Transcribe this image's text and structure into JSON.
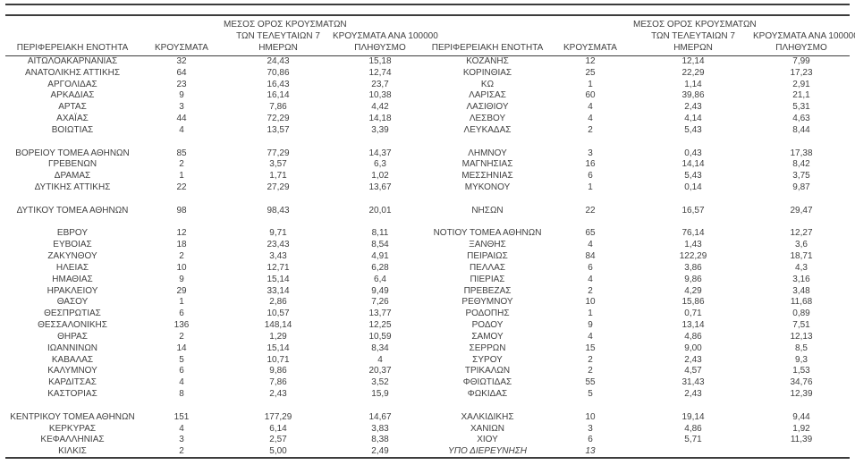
{
  "colors": {
    "text": "#3f3f3f",
    "rule": "#3c3c3c",
    "background": "#ffffff"
  },
  "columns": [
    {
      "id": "regional-unit",
      "lines": [
        "ΠΕΡΙΦΕΡΕΙΑΚΗ ΕΝΟΤΗΤΑ"
      ]
    },
    {
      "id": "cases",
      "lines": [
        "ΚΡΟΥΣΜΑΤΑ"
      ]
    },
    {
      "id": "avg-cases-7-days",
      "lines": [
        "ΜΕΣΟΣ ΟΡΟΣ ΚΡΟΥΣΜΑΤΩΝ",
        "ΤΩΝ ΤΕΛΕΥΤΑΙΩΝ 7",
        "ΗΜΕΡΩΝ"
      ]
    },
    {
      "id": "cases-per-100k",
      "lines": [
        "ΚΡΟΥΣΜΑΤΑ ΑΝΑ 100000",
        "ΠΛΗΘΥΣΜΟ"
      ]
    }
  ],
  "left_table": {
    "groups": [
      [
        [
          "ΑΙΤΩΛΟΑΚΑΡΝΑΝΙΑΣ",
          "32",
          "24,43",
          "15,18"
        ],
        [
          "ΑΝΑΤΟΛΙΚΗΣ ΑΤΤΙΚΗΣ",
          "64",
          "70,86",
          "12,74"
        ],
        [
          "ΑΡΓΟΛΙΔΑΣ",
          "23",
          "16,43",
          "23,7"
        ],
        [
          "ΑΡΚΑΔΙΑΣ",
          "9",
          "16,14",
          "10,38"
        ],
        [
          "ΑΡΤΑΣ",
          "3",
          "7,86",
          "4,42"
        ],
        [
          "ΑΧΑΪΑΣ",
          "44",
          "72,29",
          "14,18"
        ],
        [
          "ΒΟΙΩΤΙΑΣ",
          "4",
          "13,57",
          "3,39"
        ]
      ],
      [
        [
          "ΒΟΡΕΙΟΥ ΤΟΜΕΑ ΑΘΗΝΩΝ",
          "85",
          "77,29",
          "14,37"
        ],
        [
          "ΓΡΕΒΕΝΩΝ",
          "2",
          "3,57",
          "6,3"
        ],
        [
          "ΔΡΑΜΑΣ",
          "1",
          "1,71",
          "1,02"
        ],
        [
          "ΔΥΤΙΚΗΣ ΑΤΤΙΚΗΣ",
          "22",
          "27,29",
          "13,67"
        ]
      ],
      [
        [
          "ΔΥΤΙΚΟΥ ΤΟΜΕΑ ΑΘΗΝΩΝ",
          "98",
          "98,43",
          "20,01"
        ]
      ],
      [
        [
          "ΕΒΡΟΥ",
          "12",
          "9,71",
          "8,11"
        ],
        [
          "ΕΥΒΟΙΑΣ",
          "18",
          "23,43",
          "8,54"
        ],
        [
          "ΖΑΚΥΝΘΟΥ",
          "2",
          "3,43",
          "4,91"
        ],
        [
          "ΗΛΕΙΑΣ",
          "10",
          "12,71",
          "6,28"
        ],
        [
          "ΗΜΑΘΙΑΣ",
          "9",
          "15,14",
          "6,4"
        ],
        [
          "ΗΡΑΚΛΕΙΟΥ",
          "29",
          "33,14",
          "9,49"
        ],
        [
          "ΘΑΣΟΥ",
          "1",
          "2,86",
          "7,26"
        ],
        [
          "ΘΕΣΠΡΩΤΙΑΣ",
          "6",
          "10,57",
          "13,77"
        ],
        [
          "ΘΕΣΣΑΛΟΝΙΚΗΣ",
          "136",
          "148,14",
          "12,25"
        ],
        [
          "ΘΗΡΑΣ",
          "2",
          "1,29",
          "10,59"
        ],
        [
          "ΙΩΑΝΝΙΝΩΝ",
          "14",
          "15,14",
          "8,34"
        ],
        [
          "ΚΑΒΑΛΑΣ",
          "5",
          "10,71",
          "4"
        ],
        [
          "ΚΑΛΥΜΝΟΥ",
          "6",
          "9,86",
          "20,37"
        ],
        [
          "ΚΑΡΔΙΤΣΑΣ",
          "4",
          "7,86",
          "3,52"
        ],
        [
          "ΚΑΣΤΟΡΙΑΣ",
          "8",
          "2,43",
          "15,9"
        ]
      ],
      [
        [
          "ΚΕΝΤΡΙΚΟΥ ΤΟΜΕΑ ΑΘΗΝΩΝ",
          "151",
          "177,29",
          "14,67"
        ],
        [
          "ΚΕΡΚΥΡΑΣ",
          "4",
          "6,14",
          "3,83"
        ],
        [
          "ΚΕΦΑΛΛΗΝΙΑΣ",
          "3",
          "2,57",
          "8,38"
        ],
        [
          "ΚΙΛΚΙΣ",
          "2",
          "5,00",
          "2,49"
        ]
      ]
    ]
  },
  "right_table": {
    "emphasis_row": "ΥΠΟ ΔΙΕΡΕΥΝΗΣΗ",
    "groups": [
      [
        [
          "ΚΟΖΑΝΗΣ",
          "12",
          "12,14",
          "7,99"
        ],
        [
          "ΚΟΡΙΝΘΙΑΣ",
          "25",
          "22,29",
          "17,23"
        ],
        [
          "ΚΩ",
          "1",
          "1,14",
          "2,91"
        ],
        [
          "ΛΑΡΙΣΑΣ",
          "60",
          "39,86",
          "21,1"
        ],
        [
          "ΛΑΣΙΘΙΟΥ",
          "4",
          "2,43",
          "5,31"
        ],
        [
          "ΛΕΣΒΟΥ",
          "4",
          "4,14",
          "4,63"
        ],
        [
          "ΛΕΥΚΑΔΑΣ",
          "2",
          "5,43",
          "8,44"
        ]
      ],
      [
        [
          "ΛΗΜΝΟΥ",
          "3",
          "0,43",
          "17,38"
        ],
        [
          "ΜΑΓΝΗΣΙΑΣ",
          "16",
          "14,14",
          "8,42"
        ],
        [
          "ΜΕΣΣΗΝΙΑΣ",
          "6",
          "5,43",
          "3,75"
        ],
        [
          "ΜΥΚΟΝΟΥ",
          "1",
          "0,14",
          "9,87"
        ]
      ],
      [
        [
          "ΝΗΣΩΝ",
          "22",
          "16,57",
          "29,47"
        ]
      ],
      [
        [
          "ΝΟΤΙΟΥ ΤΟΜΕΑ ΑΘΗΝΩΝ",
          "65",
          "76,14",
          "12,27"
        ],
        [
          "ΞΑΝΘΗΣ",
          "4",
          "1,43",
          "3,6"
        ],
        [
          "ΠΕΙΡΑΙΩΣ",
          "84",
          "122,29",
          "18,71"
        ],
        [
          "ΠΕΛΛΑΣ",
          "6",
          "3,86",
          "4,3"
        ],
        [
          "ΠΙΕΡΙΑΣ",
          "4",
          "9,86",
          "3,16"
        ],
        [
          "ΠΡΕΒΕΖΑΣ",
          "2",
          "4,29",
          "3,48"
        ],
        [
          "ΡΕΘΥΜΝΟΥ",
          "10",
          "15,86",
          "11,68"
        ],
        [
          "ΡΟΔΟΠΗΣ",
          "1",
          "0,71",
          "0,89"
        ],
        [
          "ΡΟΔΟΥ",
          "9",
          "13,14",
          "7,51"
        ],
        [
          "ΣΑΜΟΥ",
          "4",
          "4,86",
          "12,13"
        ],
        [
          "ΣΕΡΡΩΝ",
          "15",
          "9,00",
          "8,5"
        ],
        [
          "ΣΥΡΟΥ",
          "2",
          "2,43",
          "9,3"
        ],
        [
          "ΤΡΙΚΑΛΩΝ",
          "2",
          "4,57",
          "1,53"
        ],
        [
          "ΦΘΙΩΤΙΔΑΣ",
          "55",
          "31,43",
          "34,76"
        ],
        [
          "ΦΩΚΙΔΑΣ",
          "5",
          "2,43",
          "12,39"
        ]
      ],
      [
        [
          "ΧΑΛΚΙΔΙΚΗΣ",
          "10",
          "19,14",
          "9,44"
        ],
        [
          "ΧΑΝΙΩΝ",
          "3",
          "4,86",
          "1,92"
        ],
        [
          "ΧΙΟΥ",
          "6",
          "5,71",
          "11,39"
        ],
        [
          "ΥΠΟ ΔΙΕΡΕΥΝΗΣΗ",
          "13",
          "",
          ""
        ]
      ]
    ]
  }
}
